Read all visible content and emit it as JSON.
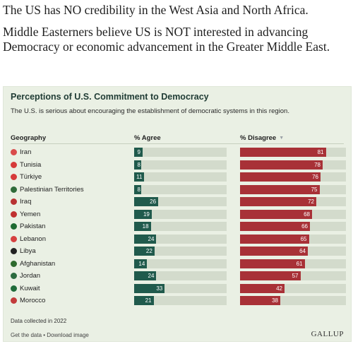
{
  "intro": {
    "paragraph1": "The US has NO credibility in the West Asia and North Africa.",
    "paragraph2": "Middle Easterners believe US is NOT interested in advancing Democracy or economic advancement in the Greater Middle East."
  },
  "card": {
    "title": "Perceptions of U.S. Commitment to Democracy",
    "subtitle": "The U.S. is serious about encouraging the establishment of democratic systems in this region.",
    "note": "Data collected in 2022",
    "get_data_label": "Get the data",
    "separator": " • ",
    "download_label": "Download image",
    "brand": "GALLUP"
  },
  "chart_data": {
    "type": "table",
    "columns": [
      "Geography",
      "% Agree",
      "% Disagree"
    ],
    "sort_indicator": "▼",
    "rows": [
      {
        "geography": "Iran",
        "agree": 9,
        "disagree": 81,
        "flag_color": "#d94b4b"
      },
      {
        "geography": "Tunisia",
        "agree": 8,
        "disagree": 78,
        "flag_color": "#d63a3a"
      },
      {
        "geography": "Türkiye",
        "agree": 11,
        "disagree": 76,
        "flag_color": "#d63a3a"
      },
      {
        "geography": "Palestinian Territories",
        "agree": 8,
        "disagree": 75,
        "flag_color": "#2f6b3a"
      },
      {
        "geography": "Iraq",
        "agree": 26,
        "disagree": 72,
        "flag_color": "#b83232"
      },
      {
        "geography": "Yemen",
        "agree": 19,
        "disagree": 68,
        "flag_color": "#c03030"
      },
      {
        "geography": "Pakistan",
        "agree": 18,
        "disagree": 66,
        "flag_color": "#1e6a32"
      },
      {
        "geography": "Lebanon",
        "agree": 24,
        "disagree": 65,
        "flag_color": "#d64040"
      },
      {
        "geography": "Libya",
        "agree": 22,
        "disagree": 64,
        "flag_color": "#222222"
      },
      {
        "geography": "Afghanistan",
        "agree": 14,
        "disagree": 61,
        "flag_color": "#2d6a2d"
      },
      {
        "geography": "Jordan",
        "agree": 24,
        "disagree": 57,
        "flag_color": "#2b6b3f"
      },
      {
        "geography": "Kuwait",
        "agree": 33,
        "disagree": 42,
        "flag_color": "#1f6b3a"
      },
      {
        "geography": "Morocco",
        "agree": 21,
        "disagree": 38,
        "flag_color": "#c23b3b"
      }
    ],
    "colors": {
      "agree": "#205a4c",
      "disagree": "#a83137",
      "track": "#d3dbcc"
    },
    "xlim": [
      0,
      100
    ]
  }
}
